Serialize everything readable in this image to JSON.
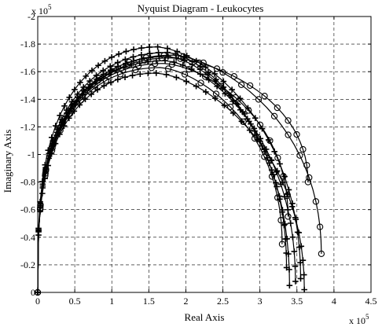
{
  "chart_data": {
    "type": "line",
    "title": "Nyquist Diagram - Leukocytes",
    "xlabel": "Real Axis",
    "ylabel": "Imaginary Axis",
    "x_exponent_label": {
      "base": "x 10",
      "exp": "5"
    },
    "y_exponent_label": {
      "base": "x 10",
      "exp": "5"
    },
    "xlim": [
      0,
      4.5
    ],
    "ylim": [
      0,
      -2
    ],
    "y_axis_reversed": true,
    "grid": true,
    "grid_style": "dashed",
    "x_ticks": [
      "0",
      "0.5",
      "1",
      "1.5",
      "2",
      "2.5",
      "3",
      "3.5",
      "4",
      "4.5"
    ],
    "y_ticks": [
      "0",
      "-0.2",
      "-0.4",
      "-0.6",
      "-0.8",
      "-1",
      "-1.2",
      "-1.4",
      "-1.6",
      "-1.8",
      "-2"
    ],
    "line_color": "#000000",
    "series": [
      {
        "marker": "plus",
        "peak_x": 1.62,
        "peak_y": -1.78,
        "end_x": 3.55,
        "end_y": -0.1
      },
      {
        "marker": "plus",
        "peak_x": 1.75,
        "peak_y": -1.74,
        "end_x": 3.4,
        "end_y": -0.05
      },
      {
        "marker": "circle",
        "peak_x": 1.83,
        "peak_y": -1.72,
        "end_x": 3.83,
        "end_y": -0.28
      },
      {
        "marker": "circle",
        "peak_x": 1.8,
        "peak_y": -1.7,
        "end_x": 3.65,
        "end_y": -0.8
      },
      {
        "marker": "plus",
        "peak_x": 1.76,
        "peak_y": -1.71,
        "end_x": 3.36,
        "end_y": -0.18
      },
      {
        "marker": "circle",
        "peak_x": 1.7,
        "peak_y": -1.66,
        "end_x": 3.38,
        "end_y": -0.55
      },
      {
        "marker": "plus",
        "peak_x": 1.72,
        "peak_y": -1.68,
        "end_x": 3.48,
        "end_y": -0.08
      },
      {
        "marker": "circle",
        "peak_x": 1.65,
        "peak_y": -1.63,
        "end_x": 3.3,
        "end_y": -0.35
      },
      {
        "marker": "plus",
        "peak_x": 1.6,
        "peak_y": -1.59,
        "end_x": 3.6,
        "end_y": -0.02
      }
    ]
  }
}
